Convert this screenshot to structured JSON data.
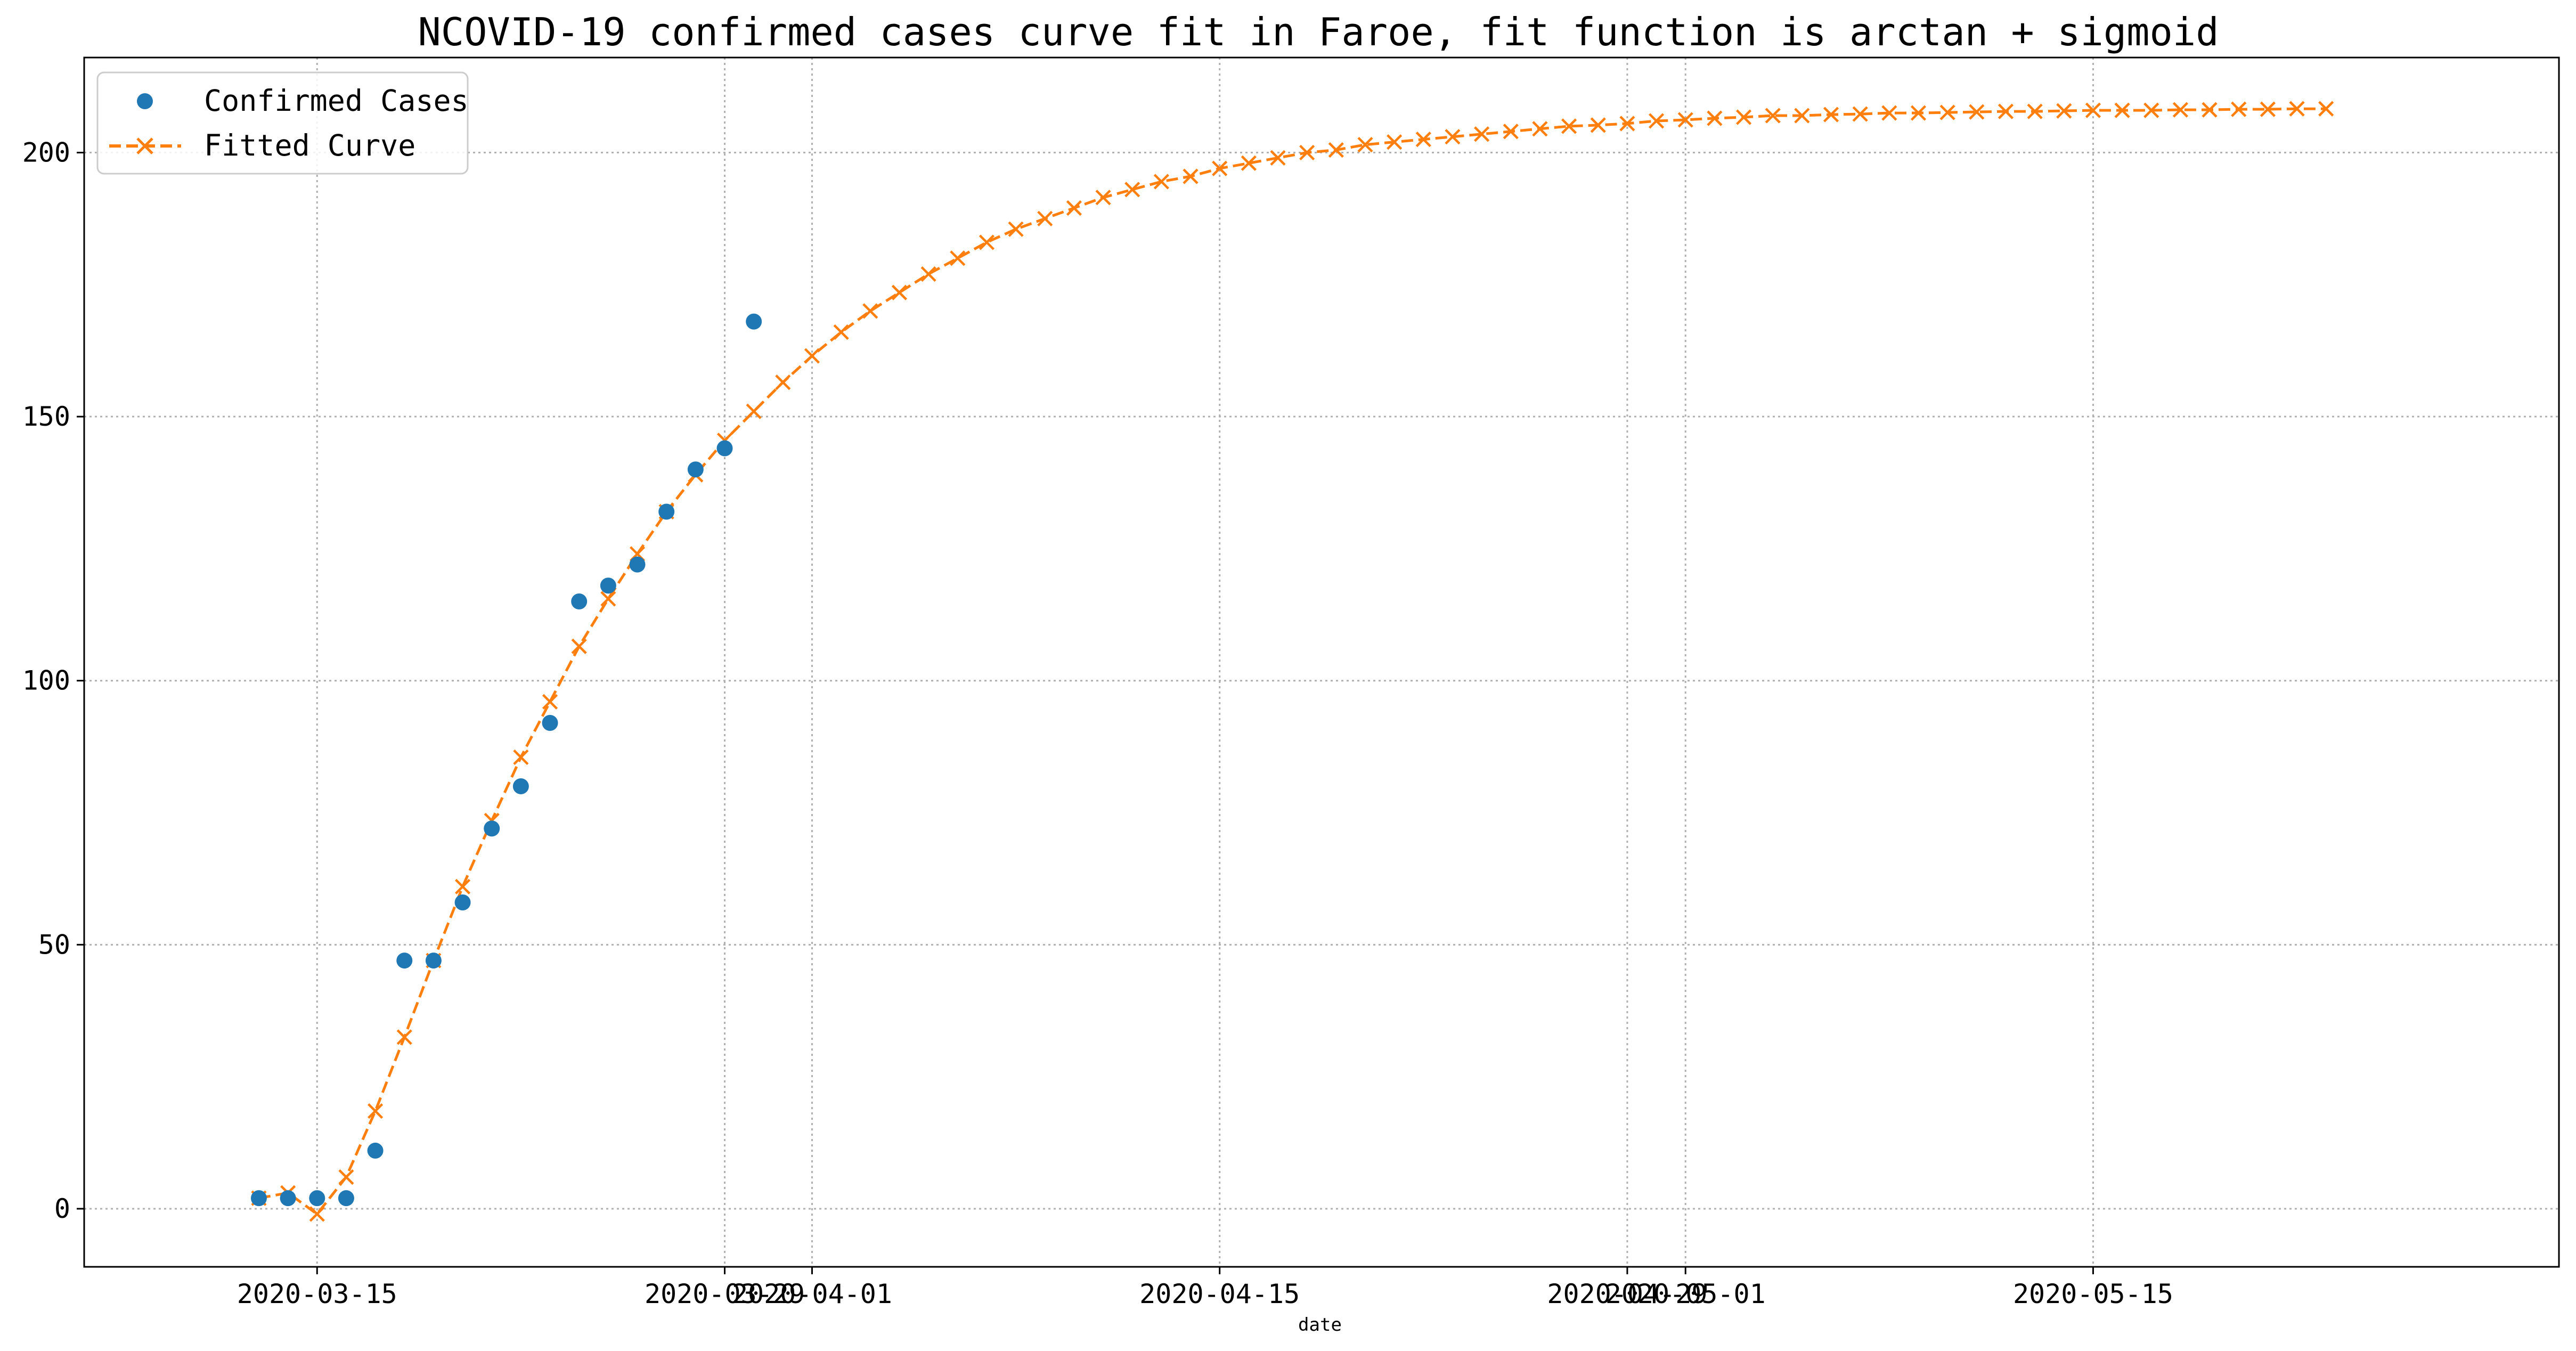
{
  "chart_data": {
    "type": "line",
    "title": "NCOVID-19 confirmed cases curve fit in Faroe, fit function is arctan + sigmoid",
    "xlabel": "date",
    "ylabel": "",
    "x_axis": "date",
    "ylim": [
      -11,
      218
    ],
    "xlim": [
      "2020-03-07",
      "2020-05-31"
    ],
    "y_ticks": [
      0,
      50,
      100,
      150,
      200
    ],
    "x_ticks": [
      "2020-03-15",
      "2020-03-29",
      "2020-04-01",
      "2020-04-15",
      "2020-04-29",
      "2020-05-01",
      "2020-05-15"
    ],
    "grid": true,
    "legend": "top-left",
    "series": [
      {
        "name": "Confirmed Cases",
        "style": "markers",
        "marker": "circle",
        "color": "#1f77b4",
        "x": [
          "2020-03-13",
          "2020-03-14",
          "2020-03-15",
          "2020-03-16",
          "2020-03-17",
          "2020-03-18",
          "2020-03-19",
          "2020-03-20",
          "2020-03-21",
          "2020-03-22",
          "2020-03-23",
          "2020-03-24",
          "2020-03-25",
          "2020-03-26",
          "2020-03-27",
          "2020-03-28",
          "2020-03-29",
          "2020-03-30"
        ],
        "y": [
          2,
          2,
          2,
          2,
          11,
          47,
          47,
          58,
          72,
          80,
          92,
          115,
          118,
          122,
          132,
          140,
          144,
          168
        ]
      },
      {
        "name": "Fitted Curve",
        "style": "dashed-line",
        "marker": "x",
        "color": "#ff7f0e",
        "x": [
          "2020-03-13",
          "2020-03-14",
          "2020-03-15",
          "2020-03-16",
          "2020-03-17",
          "2020-03-18",
          "2020-03-19",
          "2020-03-20",
          "2020-03-21",
          "2020-03-22",
          "2020-03-23",
          "2020-03-24",
          "2020-03-25",
          "2020-03-26",
          "2020-03-27",
          "2020-03-28",
          "2020-03-29",
          "2020-03-30",
          "2020-03-31",
          "2020-04-01",
          "2020-04-02",
          "2020-04-03",
          "2020-04-04",
          "2020-04-05",
          "2020-04-06",
          "2020-04-07",
          "2020-04-08",
          "2020-04-09",
          "2020-04-10",
          "2020-04-11",
          "2020-04-12",
          "2020-04-13",
          "2020-04-14",
          "2020-04-15",
          "2020-04-16",
          "2020-04-17",
          "2020-04-18",
          "2020-04-19",
          "2020-04-20",
          "2020-04-21",
          "2020-04-22",
          "2020-04-23",
          "2020-04-24",
          "2020-04-25",
          "2020-04-26",
          "2020-04-27",
          "2020-04-28",
          "2020-04-29",
          "2020-04-30",
          "2020-05-01",
          "2020-05-02",
          "2020-05-03",
          "2020-05-04",
          "2020-05-05",
          "2020-05-06",
          "2020-05-07",
          "2020-05-08",
          "2020-05-09",
          "2020-05-10",
          "2020-05-11",
          "2020-05-12",
          "2020-05-13",
          "2020-05-14",
          "2020-05-15",
          "2020-05-16",
          "2020-05-17",
          "2020-05-18",
          "2020-05-19",
          "2020-05-20",
          "2020-05-21",
          "2020-05-22",
          "2020-05-23"
        ],
        "y": [
          2,
          3,
          -1,
          6,
          18.5,
          32.5,
          47,
          61,
          73.5,
          85.5,
          96,
          106.5,
          115.5,
          124,
          132,
          139,
          145.5,
          151,
          156.5,
          161.5,
          166,
          170,
          173.5,
          177,
          180,
          183,
          185.5,
          187.5,
          189.5,
          191.5,
          193,
          194.5,
          195.5,
          197,
          198,
          199,
          200,
          200.5,
          201.5,
          202,
          202.5,
          203,
          203.5,
          204,
          204.5,
          205,
          205.2,
          205.5,
          206,
          206.2,
          206.5,
          206.7,
          207,
          207,
          207.2,
          207.3,
          207.5,
          207.5,
          207.6,
          207.7,
          207.8,
          207.8,
          207.9,
          208,
          208,
          208,
          208.1,
          208.1,
          208.2,
          208.2,
          208.3,
          208.3
        ]
      }
    ]
  }
}
